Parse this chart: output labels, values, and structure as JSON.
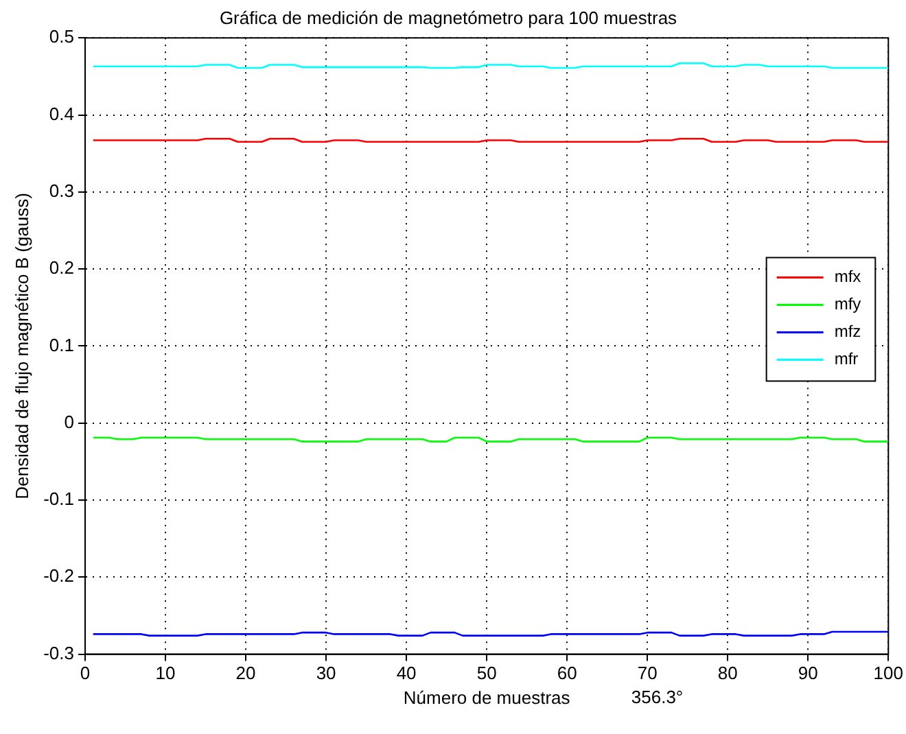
{
  "chart_data": {
    "type": "line",
    "title": "Gráfica de medición de magnetómetro para 100 muestras",
    "xlabel": "Número de muestras",
    "ylabel": "Densidad de flujo magnético B (gauss)",
    "annotations": [
      "356.3°"
    ],
    "xlim": [
      0,
      100
    ],
    "xticks": [
      0,
      10,
      20,
      30,
      40,
      50,
      60,
      70,
      80,
      90,
      100
    ],
    "ylim": [
      -0.3,
      0.5
    ],
    "yticks": [
      -0.3,
      -0.2,
      -0.1,
      {
        "value": 0,
        "label": "0"
      },
      0.1,
      0.2,
      0.3,
      0.4,
      0.5
    ],
    "grid": true,
    "line_style": "solid",
    "legend": "right",
    "marker": "none",
    "series": [
      {
        "name": "mfx",
        "color": "#ff0000",
        "x": [
          1,
          14,
          15,
          18,
          19,
          22,
          23,
          26,
          27,
          30,
          31,
          34,
          35,
          49,
          50,
          53,
          54,
          69,
          70,
          73,
          74,
          77,
          78,
          81,
          82,
          85,
          86,
          92,
          93,
          96,
          97,
          100
        ],
        "values": [
          0.367,
          0.367,
          0.369,
          0.369,
          0.365,
          0.365,
          0.369,
          0.369,
          0.365,
          0.365,
          0.367,
          0.367,
          0.365,
          0.365,
          0.367,
          0.367,
          0.365,
          0.365,
          0.367,
          0.367,
          0.369,
          0.369,
          0.365,
          0.365,
          0.367,
          0.367,
          0.365,
          0.365,
          0.367,
          0.367,
          0.365,
          0.365
        ]
      },
      {
        "name": "mfy",
        "color": "#00ff00",
        "x": [
          1,
          3,
          4,
          6,
          7,
          14,
          15,
          26,
          27,
          34,
          35,
          42,
          43,
          45,
          46,
          49,
          50,
          53,
          54,
          61,
          62,
          69,
          70,
          73,
          74,
          88,
          89,
          92,
          93,
          96,
          97,
          100
        ],
        "values": [
          -0.019,
          -0.019,
          -0.021,
          -0.021,
          -0.019,
          -0.019,
          -0.021,
          -0.021,
          -0.024,
          -0.024,
          -0.021,
          -0.021,
          -0.024,
          -0.024,
          -0.019,
          -0.019,
          -0.024,
          -0.024,
          -0.021,
          -0.021,
          -0.024,
          -0.024,
          -0.019,
          -0.019,
          -0.021,
          -0.021,
          -0.019,
          -0.019,
          -0.021,
          -0.021,
          -0.024,
          -0.024
        ]
      },
      {
        "name": "mfz",
        "color": "#0000ff",
        "x": [
          1,
          7,
          8,
          14,
          15,
          26,
          27,
          30,
          31,
          38,
          39,
          42,
          43,
          46,
          47,
          57,
          58,
          69,
          70,
          73,
          74,
          77,
          78,
          81,
          82,
          88,
          89,
          92,
          93,
          100
        ],
        "values": [
          -0.274,
          -0.274,
          -0.276,
          -0.276,
          -0.274,
          -0.274,
          -0.272,
          -0.272,
          -0.274,
          -0.274,
          -0.276,
          -0.276,
          -0.272,
          -0.272,
          -0.276,
          -0.276,
          -0.274,
          -0.274,
          -0.272,
          -0.272,
          -0.276,
          -0.276,
          -0.274,
          -0.274,
          -0.276,
          -0.276,
          -0.274,
          -0.274,
          -0.271,
          -0.271
        ]
      },
      {
        "name": "mfr",
        "color": "#00ffff",
        "x": [
          1,
          14,
          15,
          18,
          19,
          22,
          23,
          26,
          27,
          42,
          43,
          46,
          47,
          49,
          50,
          53,
          54,
          57,
          58,
          61,
          62,
          73,
          74,
          77,
          78,
          81,
          82,
          84,
          85,
          92,
          93,
          100
        ],
        "values": [
          0.463,
          0.463,
          0.465,
          0.465,
          0.461,
          0.461,
          0.465,
          0.465,
          0.462,
          0.462,
          0.461,
          0.461,
          0.462,
          0.462,
          0.465,
          0.465,
          0.463,
          0.463,
          0.461,
          0.461,
          0.463,
          0.463,
          0.467,
          0.467,
          0.463,
          0.463,
          0.465,
          0.465,
          0.463,
          0.463,
          0.461,
          0.461
        ]
      }
    ]
  }
}
